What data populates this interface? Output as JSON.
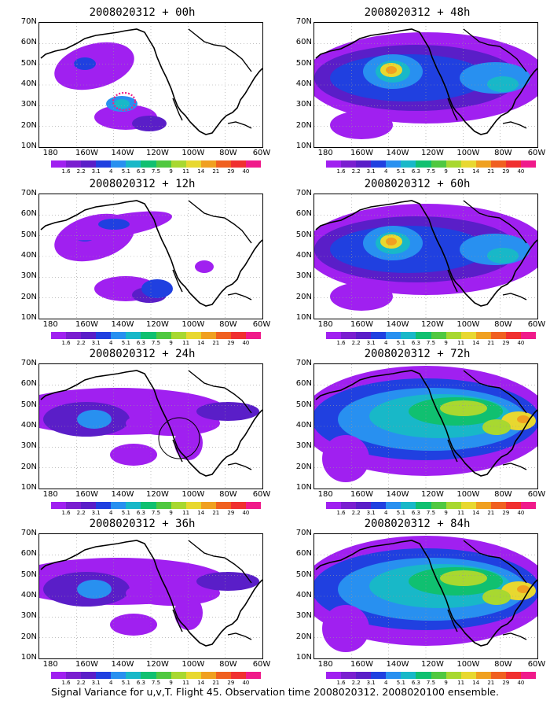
{
  "panels": [
    {
      "title": "2008020312 + 00h",
      "intensity": 1,
      "features": [
        "pacific-blob",
        "hawaii-blob",
        "highlight-circle"
      ]
    },
    {
      "title": "2008020312 + 12h",
      "intensity": 1,
      "features": [
        "pacific-blob",
        "arc-blob"
      ]
    },
    {
      "title": "2008020312 + 24h",
      "intensity": 2,
      "features": [
        "band",
        "mexico-circle"
      ]
    },
    {
      "title": "2008020312 + 36h",
      "intensity": 2,
      "features": [
        "band"
      ]
    },
    {
      "title": "2008020312 + 48h",
      "intensity": 3,
      "features": [
        "band",
        "hotspot"
      ]
    },
    {
      "title": "2008020312 + 60h",
      "intensity": 3,
      "features": [
        "band",
        "hotspot"
      ]
    },
    {
      "title": "2008020312 + 72h",
      "intensity": 4,
      "features": [
        "band",
        "east-hotspot"
      ]
    },
    {
      "title": "2008020312 + 84h",
      "intensity": 4,
      "features": [
        "band",
        "east-hotspot"
      ]
    }
  ],
  "lat_labels": [
    "70N",
    "60N",
    "50N",
    "40N",
    "30N",
    "20N",
    "10N"
  ],
  "lon_labels": [
    "180",
    "160W",
    "140W",
    "120W",
    "100W",
    "80W",
    "60W"
  ],
  "colorbar": {
    "labels": [
      "1.6",
      "2.2",
      "3.1",
      "4",
      "5.1",
      "6.3",
      "7.5",
      "9",
      "11",
      "14",
      "21",
      "29",
      "40"
    ],
    "colors": [
      "#a020f0",
      "#7a1ed0",
      "#5a1ec8",
      "#2040e0",
      "#2890f0",
      "#18b8c8",
      "#10c070",
      "#50c840",
      "#a8d830",
      "#e8d830",
      "#f0a020",
      "#f06020",
      "#f03030",
      "#f01a8a"
    ]
  },
  "caption": "Signal Variance for u,v,T. Flight 45. Observation time 2008020312. 2008020100 ensemble."
}
